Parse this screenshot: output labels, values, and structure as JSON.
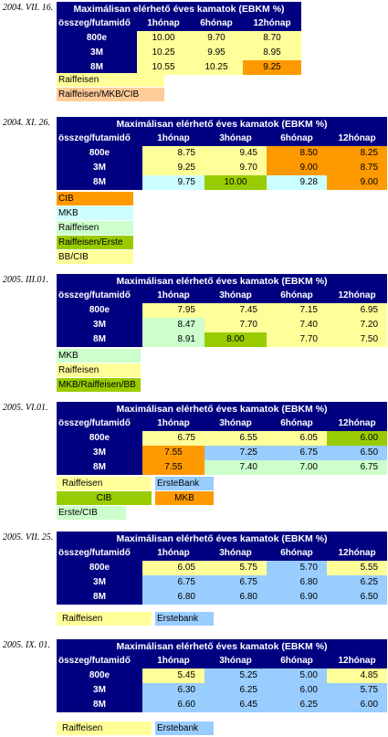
{
  "sections": [
    {
      "date": "2004. VII. 16.",
      "title": "Maximálisan elérhető éves kamatok (EBKM %)",
      "corner": "összeg/futamidő",
      "columns": [
        "1hónap",
        "6hónap",
        "12hónap"
      ],
      "rows": [
        {
          "label": "800e",
          "values": [
            "10.00",
            "9.70",
            "8.70"
          ]
        },
        {
          "label": "3M",
          "values": [
            "10.25",
            "9.95",
            "8.95"
          ]
        },
        {
          "label": "8M",
          "values": [
            "10.55",
            "10.25",
            "9.25"
          ]
        }
      ],
      "legend": [
        {
          "label": "Raiffeisen",
          "color": "#ffff99"
        },
        {
          "label": "Raiffeisen/MKB/CIB",
          "color": "#ffcc99"
        }
      ]
    },
    {
      "date": "2004. XI. 26.",
      "title": "Maximálisan elérhető éves kamatok (EBKM %)",
      "corner": "összeg/futamidő",
      "columns": [
        "1hónap",
        "3hónap",
        "6hónap",
        "12hónap"
      ],
      "rows": [
        {
          "label": "800e",
          "values": [
            "8.75",
            "9.45",
            "8.50",
            "8.25"
          ]
        },
        {
          "label": "3M",
          "values": [
            "9.25",
            "9.70",
            "9.00",
            "8.75"
          ]
        },
        {
          "label": "8M",
          "values": [
            "9.75",
            "10.00",
            "9.28",
            "9.00"
          ]
        }
      ],
      "legend": [
        {
          "label": "CIB",
          "color": "#ff9900"
        },
        {
          "label": "MKB",
          "color": "#ccffff"
        },
        {
          "label": "Raiffeisen",
          "color": "#ccffcc"
        },
        {
          "label": "Raiffeisen/Erste",
          "color": "#99cc00"
        },
        {
          "label": "BB/CIB",
          "color": "#ffff99"
        }
      ]
    },
    {
      "date": "2005. III.01.",
      "title": "Maximálisan elérhető éves kamatok (EBKM %)",
      "corner": "összeg/futamidő",
      "columns": [
        "1hónap",
        "3hónap",
        "6hónap",
        "12hónap"
      ],
      "rows": [
        {
          "label": "800e",
          "values": [
            "7.95",
            "7.45",
            "7.15",
            "6.95"
          ]
        },
        {
          "label": "3M",
          "values": [
            "8.47",
            "7.70",
            "7.40",
            "7.20"
          ]
        },
        {
          "label": "8M",
          "values": [
            "8.91",
            "8.00",
            "7.70",
            "7.50"
          ]
        }
      ],
      "legend": [
        {
          "label": "MKB",
          "color": "#ccffcc"
        },
        {
          "label": "Raiffeisen",
          "color": "#ffff99"
        },
        {
          "label": "MKB/Raiffeisen/BB",
          "color": "#99cc00"
        }
      ]
    },
    {
      "date": "2005. VI.01.",
      "title": "Maximálisan elérhető éves kamatok (EBKM %)",
      "corner": "összeg/futamidő",
      "columns": [
        "1hónap",
        "3hónap",
        "6hónap",
        "12hónap"
      ],
      "rows": [
        {
          "label": "800e",
          "values": [
            "6.75",
            "6.55",
            "6.05",
            "6.00"
          ]
        },
        {
          "label": "3M",
          "values": [
            "7.55",
            "7.25",
            "6.75",
            "6.50"
          ]
        },
        {
          "label": "8M",
          "values": [
            "7.55",
            "7.40",
            "7.00",
            "6.75"
          ]
        }
      ],
      "legend": [
        {
          "label": "Raiffeisen",
          "color": "#ffff99"
        },
        {
          "label": "ErsteBank",
          "color": "#99ccff"
        },
        {
          "label": "CIB",
          "color": "#99cc00"
        },
        {
          "label": "MKB",
          "color": "#ff9900"
        },
        {
          "label": "Erste/CIB",
          "color": "#ccffcc"
        }
      ]
    },
    {
      "date": "2005. VII. 25.",
      "title": "Maximálisan elérhető éves kamatok (EBKM %)",
      "corner": "összeg/futamidő",
      "columns": [
        "1hónap",
        "3hónap",
        "6hónap",
        "12hónap"
      ],
      "rows": [
        {
          "label": "800e",
          "values": [
            "6.05",
            "5.75",
            "5.70",
            "5.55"
          ]
        },
        {
          "label": "3M",
          "values": [
            "6.75",
            "6.75",
            "6.80",
            "6.25"
          ]
        },
        {
          "label": "8M",
          "values": [
            "6.80",
            "6.80",
            "6.90",
            "6.50"
          ]
        }
      ],
      "legend": [
        {
          "label": "Raiffeisen",
          "color": "#ffff99"
        },
        {
          "label": "Erstebank",
          "color": "#99ccff"
        }
      ]
    },
    {
      "date": "2005. IX. 01.",
      "title": "Maximálisan elérhető éves kamatok (EBKM %)",
      "corner": "összeg/futamidő",
      "columns": [
        "1hónap",
        "3hónap",
        "6hónap",
        "12hónap"
      ],
      "rows": [
        {
          "label": "800e",
          "values": [
            "5.45",
            "5.25",
            "5.00",
            "4.85"
          ]
        },
        {
          "label": "3M",
          "values": [
            "6.30",
            "6.25",
            "6.00",
            "5.75"
          ]
        },
        {
          "label": "8M",
          "values": [
            "6.60",
            "6.45",
            "6.25",
            "6.00"
          ]
        }
      ],
      "legend": [
        {
          "label": "Raiffeisen",
          "color": "#ffff99"
        },
        {
          "label": "Erstebank",
          "color": "#99ccff"
        }
      ]
    }
  ]
}
